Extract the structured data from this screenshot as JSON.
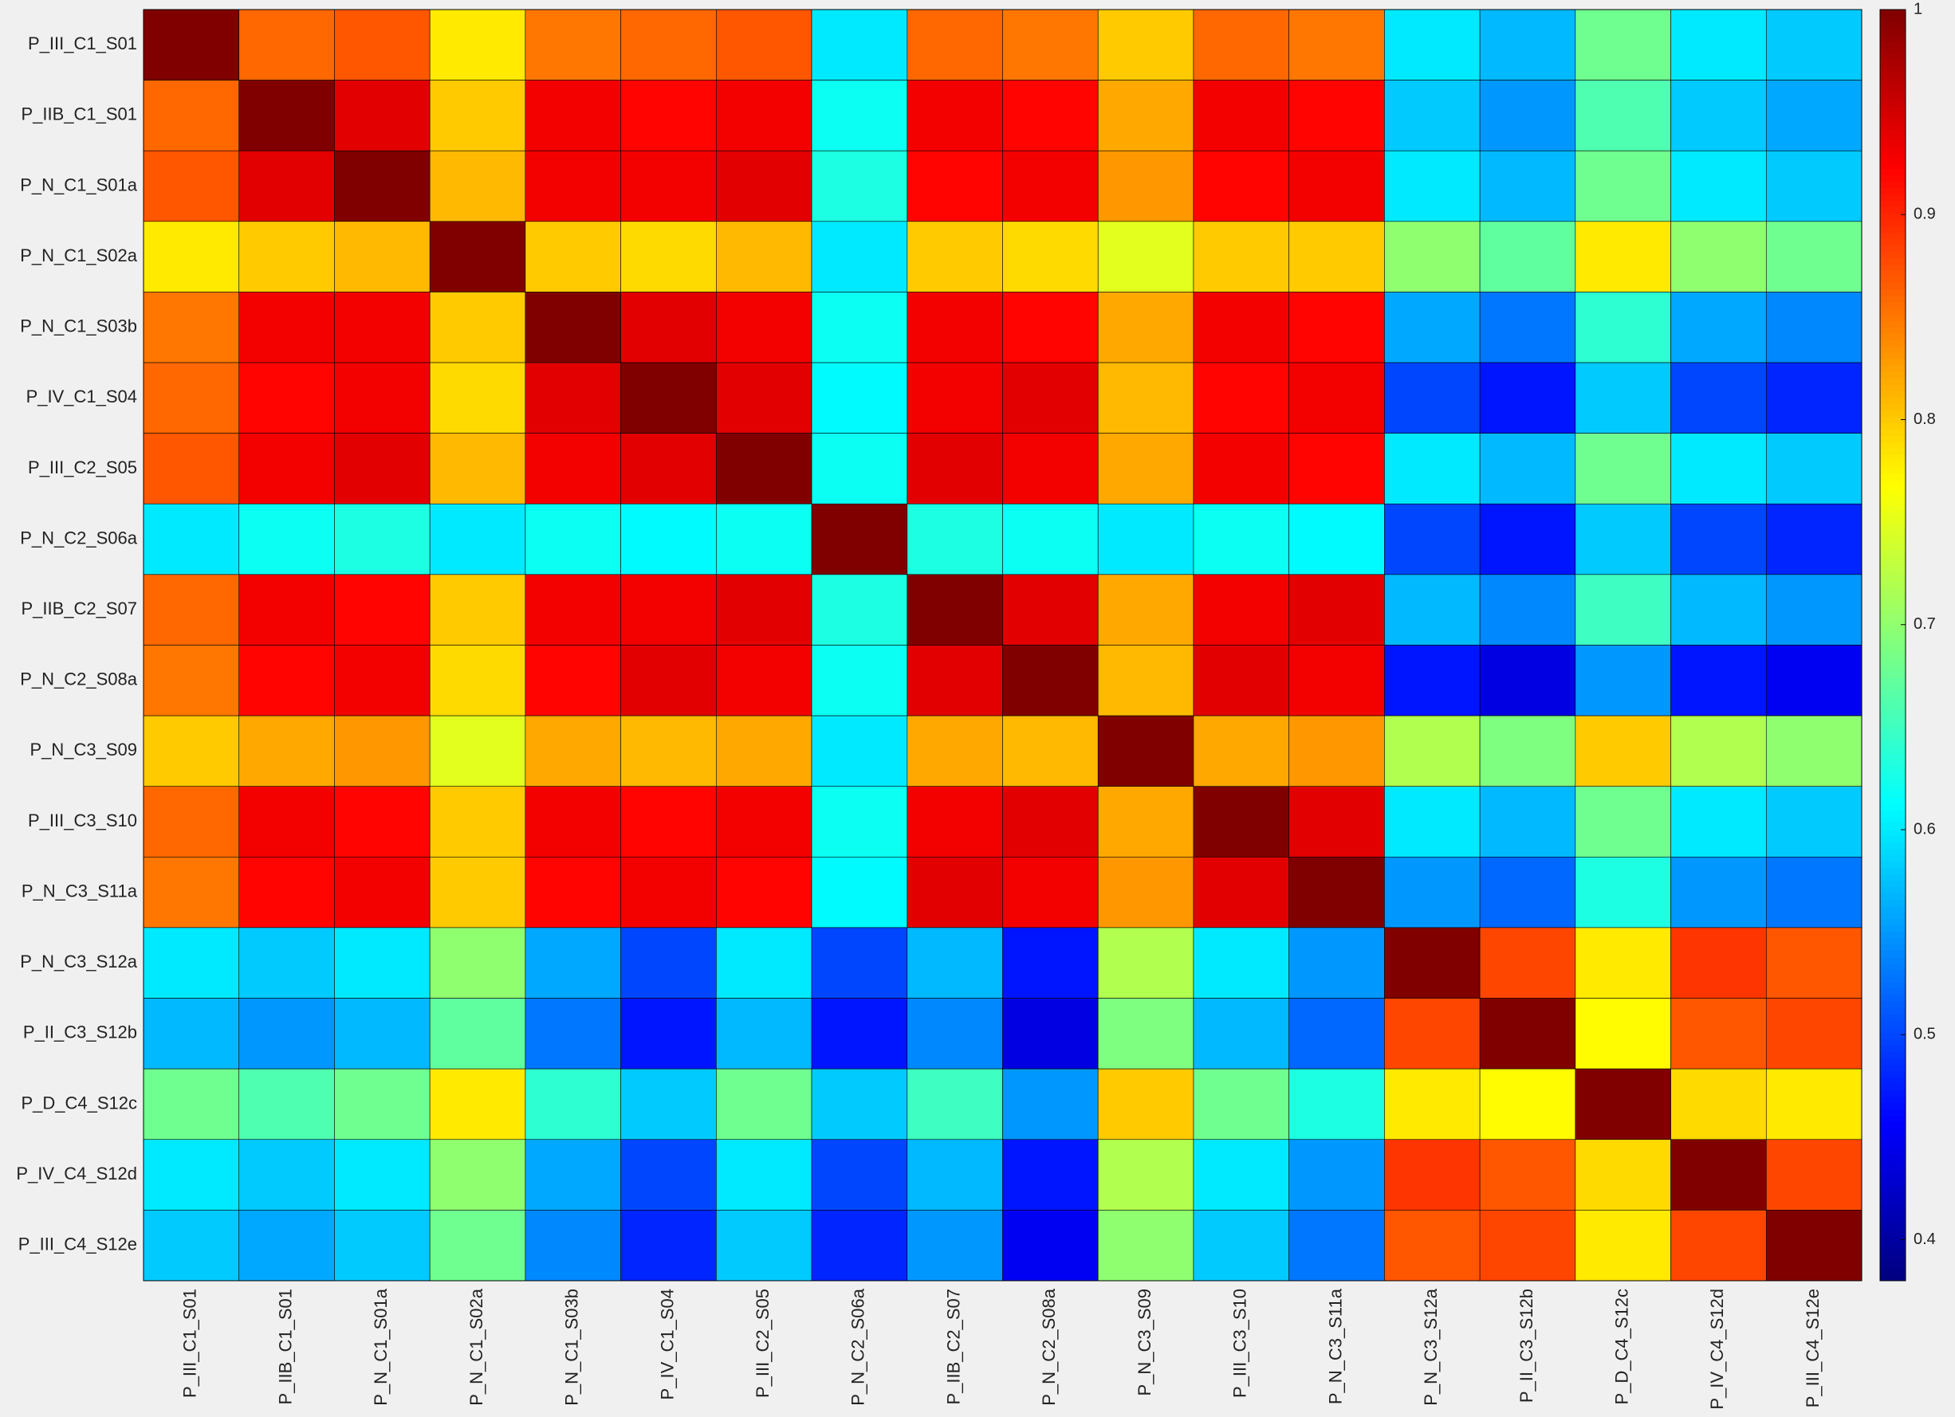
{
  "chart_data": {
    "type": "heatmap",
    "colormap": "jet",
    "categories": [
      "P_III_C1_S01",
      "P_IIB_C1_S01",
      "P_N_C1_S01a",
      "P_N_C1_S02a",
      "P_N_C1_S03b",
      "P_IV_C1_S04",
      "P_III_C2_S05",
      "P_N_C2_S06a",
      "P_IIB_C2_S07",
      "P_N_C2_S08a",
      "P_N_C3_S09",
      "P_III_C3_S10",
      "P_N_C3_S11a",
      "P_N_C3_S12a",
      "P_II_C3_S12b",
      "P_D_C4_S12c",
      "P_IV_C4_S12d",
      "P_III_C4_S12e"
    ],
    "z": [
      [
        1,
        0.86,
        0.87,
        0.78,
        0.85,
        0.86,
        0.87,
        0.6,
        0.86,
        0.85,
        0.8,
        0.86,
        0.85,
        0.6,
        0.57,
        0.68,
        0.6,
        0.58
      ],
      [
        0.86,
        1,
        0.94,
        0.8,
        0.93,
        0.92,
        0.93,
        0.62,
        0.93,
        0.92,
        0.82,
        0.93,
        0.92,
        0.58,
        0.55,
        0.66,
        0.58,
        0.56
      ],
      [
        0.87,
        0.94,
        1,
        0.81,
        0.93,
        0.93,
        0.94,
        0.63,
        0.92,
        0.93,
        0.83,
        0.92,
        0.93,
        0.6,
        0.57,
        0.68,
        0.6,
        0.58
      ],
      [
        0.78,
        0.8,
        0.81,
        1,
        0.8,
        0.79,
        0.81,
        0.6,
        0.8,
        0.79,
        0.75,
        0.8,
        0.8,
        0.7,
        0.67,
        0.78,
        0.7,
        0.68
      ],
      [
        0.85,
        0.93,
        0.93,
        0.8,
        1,
        0.94,
        0.93,
        0.62,
        0.93,
        0.92,
        0.82,
        0.93,
        0.92,
        0.56,
        0.53,
        0.64,
        0.56,
        0.54
      ],
      [
        0.86,
        0.92,
        0.93,
        0.79,
        0.94,
        1,
        0.94,
        0.61,
        0.93,
        0.94,
        0.81,
        0.92,
        0.93,
        0.5,
        0.47,
        0.58,
        0.5,
        0.48
      ],
      [
        0.87,
        0.93,
        0.94,
        0.81,
        0.93,
        0.94,
        1,
        0.62,
        0.94,
        0.93,
        0.82,
        0.93,
        0.92,
        0.6,
        0.57,
        0.68,
        0.6,
        0.58
      ],
      [
        0.6,
        0.62,
        0.63,
        0.6,
        0.62,
        0.61,
        0.62,
        1,
        0.63,
        0.62,
        0.6,
        0.62,
        0.61,
        0.5,
        0.47,
        0.58,
        0.5,
        0.48
      ],
      [
        0.86,
        0.93,
        0.92,
        0.8,
        0.93,
        0.93,
        0.94,
        0.63,
        1,
        0.94,
        0.82,
        0.93,
        0.94,
        0.57,
        0.54,
        0.65,
        0.57,
        0.55
      ],
      [
        0.85,
        0.92,
        0.93,
        0.79,
        0.92,
        0.94,
        0.93,
        0.62,
        0.94,
        1,
        0.81,
        0.94,
        0.93,
        0.47,
        0.44,
        0.55,
        0.47,
        0.45
      ],
      [
        0.8,
        0.82,
        0.83,
        0.75,
        0.82,
        0.81,
        0.82,
        0.6,
        0.82,
        0.81,
        1,
        0.82,
        0.83,
        0.72,
        0.69,
        0.8,
        0.72,
        0.7
      ],
      [
        0.86,
        0.93,
        0.92,
        0.8,
        0.93,
        0.92,
        0.93,
        0.62,
        0.93,
        0.94,
        0.82,
        1,
        0.94,
        0.6,
        0.57,
        0.68,
        0.6,
        0.58
      ],
      [
        0.85,
        0.92,
        0.93,
        0.8,
        0.92,
        0.93,
        0.92,
        0.61,
        0.94,
        0.93,
        0.83,
        0.94,
        1,
        0.55,
        0.52,
        0.63,
        0.55,
        0.53
      ],
      [
        0.6,
        0.58,
        0.6,
        0.7,
        0.56,
        0.5,
        0.6,
        0.5,
        0.57,
        0.47,
        0.72,
        0.6,
        0.55,
        1,
        0.88,
        0.78,
        0.89,
        0.87
      ],
      [
        0.57,
        0.55,
        0.57,
        0.67,
        0.53,
        0.47,
        0.57,
        0.47,
        0.54,
        0.44,
        0.69,
        0.57,
        0.52,
        0.88,
        1,
        0.77,
        0.87,
        0.88
      ],
      [
        0.68,
        0.66,
        0.68,
        0.78,
        0.64,
        0.58,
        0.68,
        0.58,
        0.65,
        0.55,
        0.8,
        0.68,
        0.63,
        0.78,
        0.77,
        1,
        0.79,
        0.78
      ],
      [
        0.6,
        0.58,
        0.6,
        0.7,
        0.56,
        0.5,
        0.6,
        0.5,
        0.57,
        0.47,
        0.72,
        0.6,
        0.55,
        0.89,
        0.87,
        0.79,
        1,
        0.88
      ],
      [
        0.58,
        0.56,
        0.58,
        0.68,
        0.54,
        0.48,
        0.58,
        0.48,
        0.55,
        0.45,
        0.7,
        0.58,
        0.53,
        0.87,
        0.88,
        0.78,
        0.88,
        1
      ]
    ],
    "clim": [
      0.38,
      1
    ],
    "cticks": [
      0.4,
      0.5,
      0.6,
      0.7,
      0.8,
      0.9,
      1
    ]
  }
}
